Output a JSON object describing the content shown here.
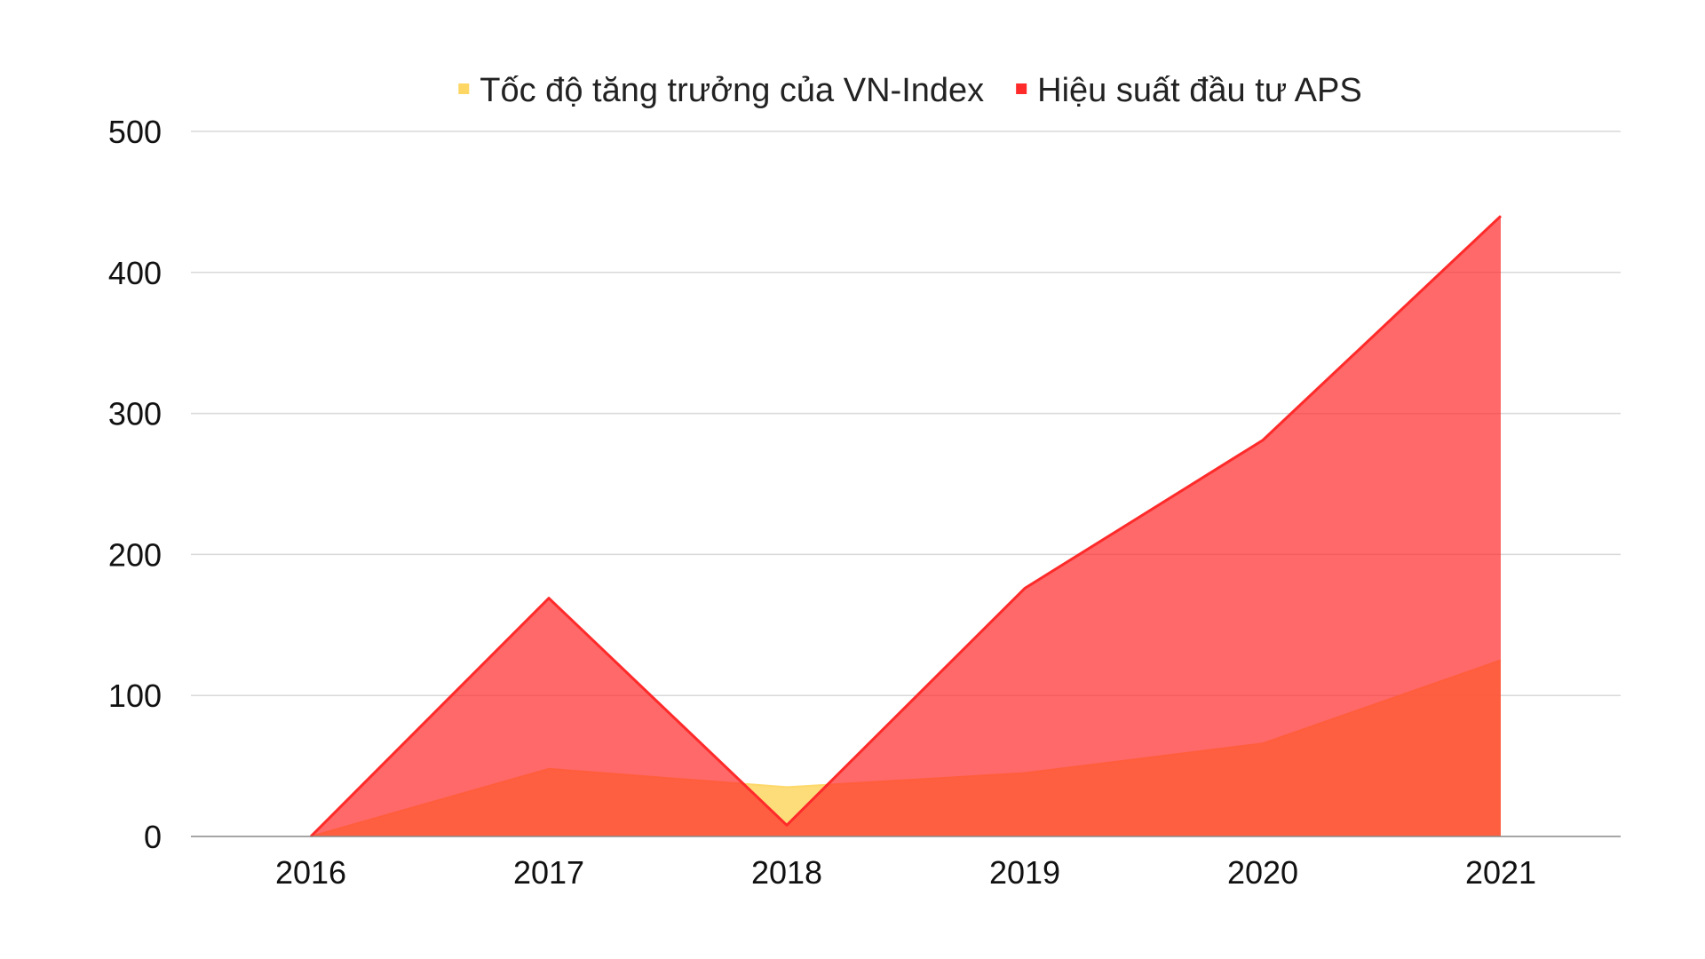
{
  "chart_data": {
    "type": "area",
    "categories": [
      "2016",
      "2017",
      "2018",
      "2019",
      "2020",
      "2021"
    ],
    "series": [
      {
        "name": "Tốc độ tăng trưởng của VN-Index",
        "color": "#fdd663",
        "values": [
          0,
          48,
          35,
          45,
          66,
          125
        ]
      },
      {
        "name": "Hiệu suất đầu tư APS",
        "color": "#ff2a2a",
        "values": [
          0,
          169,
          8,
          176,
          281,
          440
        ]
      }
    ],
    "ylim": [
      0,
      500
    ],
    "yticks": [
      "0",
      "100",
      "200",
      "300",
      "400",
      "500"
    ],
    "grid": true,
    "legend_position": "top",
    "title": "",
    "xlabel": "",
    "ylabel": ""
  }
}
